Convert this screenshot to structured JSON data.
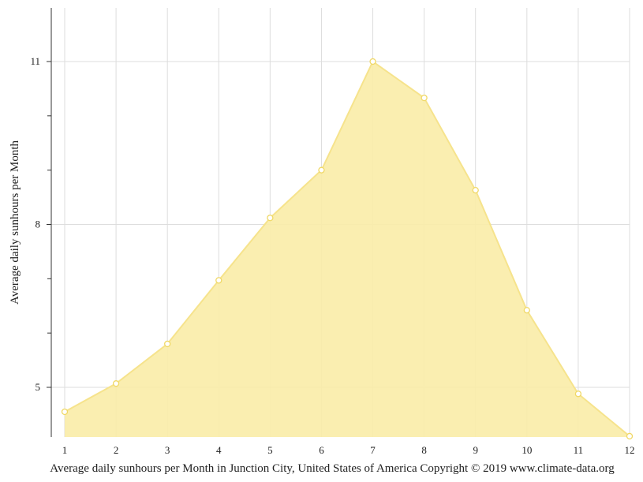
{
  "chart_data": {
    "type": "area",
    "title": "",
    "xlabel": "",
    "ylabel": "Average daily sunhours per Month",
    "caption": "Average daily sunhours per Month in Junction City, United States of America Copyright © 2019 www.climate-data.org",
    "x": [
      1,
      2,
      3,
      4,
      5,
      6,
      7,
      8,
      9,
      10,
      11,
      12
    ],
    "x_tick_labels": [
      "1",
      "2",
      "3",
      "4",
      "5",
      "6",
      "7",
      "8",
      "9",
      "10",
      "11",
      "12"
    ],
    "y_tick_labels": [
      "5",
      "8",
      "11"
    ],
    "y_ticks_labeled": [
      5,
      8,
      11
    ],
    "y_ticks_minor": [
      6,
      7,
      9,
      10
    ],
    "ylim": [
      4.1,
      12
    ],
    "series": [
      {
        "values": [
          4.55,
          5.07,
          5.8,
          6.97,
          8.12,
          9.0,
          11.0,
          10.33,
          8.63,
          6.42,
          4.88,
          4.1
        ]
      }
    ],
    "grid": true,
    "legend": "none",
    "colors": {
      "fill": "#f9eca7",
      "line": "#f6e38c",
      "marker_stroke": "#f0d866",
      "grid": "#dddddd",
      "axis": "#333333"
    }
  }
}
